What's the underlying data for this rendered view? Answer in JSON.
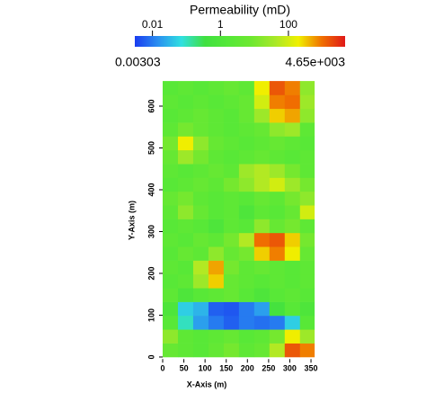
{
  "chart_data": {
    "type": "heatmap",
    "colorbar_title": "Permeability (mD)",
    "clim": [
      {
        "value": 0.00303,
        "label": "0.00303"
      },
      {
        "value": 4650,
        "label": "4.65e+003"
      }
    ],
    "cticks": [
      0.01,
      1,
      100
    ],
    "log_scale": true,
    "colorscale": [
      "#1a3cf0",
      "#2a90f0",
      "#30e0e0",
      "#40e040",
      "#55e838",
      "#6ee830",
      "#a8e828",
      "#f0f000",
      "#f07000",
      "#e01818"
    ],
    "xlabel": "X-Axis (m)",
    "ylabel": "Y-Axis (m)",
    "xlim": [
      0,
      358
    ],
    "ylim": [
      -5,
      660
    ],
    "xticks": [
      0,
      50,
      100,
      150,
      200,
      250,
      300,
      350
    ],
    "yticks": [
      0,
      100,
      200,
      300,
      400,
      500,
      600
    ],
    "x": [
      18,
      54,
      90,
      126,
      162,
      198,
      234,
      270,
      306,
      342
    ],
    "y": [
      16.5,
      49.5,
      82.5,
      115.5,
      148.5,
      181.5,
      214.5,
      247.5,
      280.5,
      313.5,
      346.5,
      379.5,
      412.5,
      445.5,
      478.5,
      511.5,
      544.5,
      577.5,
      610.5,
      643.5
    ],
    "values": [
      [
        5,
        3,
        2,
        4,
        10,
        3,
        5,
        50,
        1500,
        800
      ],
      [
        20,
        3,
        2,
        3,
        5,
        2,
        3,
        10,
        200,
        30
      ],
      [
        2,
        0.1,
        0.02,
        0.01,
        0.006,
        0.01,
        0.008,
        0.01,
        0.05,
        2
      ],
      [
        1,
        0.05,
        0.03,
        0.006,
        0.005,
        0.01,
        0.02,
        0.5,
        2,
        1
      ],
      [
        3,
        1,
        2,
        3,
        5,
        2,
        1,
        2,
        3,
        2
      ],
      [
        2,
        3,
        30,
        300,
        5,
        3,
        2,
        3,
        2,
        3
      ],
      [
        3,
        2,
        50,
        500,
        10,
        3,
        5,
        3,
        2,
        3
      ],
      [
        2,
        5,
        3,
        20,
        5,
        10,
        300,
        800,
        200,
        5
      ],
      [
        3,
        2,
        5,
        3,
        10,
        50,
        1000,
        1500,
        300,
        10
      ],
      [
        2,
        3,
        2,
        1,
        3,
        2,
        20,
        5,
        10,
        3
      ],
      [
        3,
        20,
        5,
        2,
        3,
        1,
        3,
        2,
        5,
        100
      ],
      [
        5,
        10,
        3,
        2,
        3,
        2,
        5,
        3,
        10,
        20
      ],
      [
        2,
        3,
        5,
        3,
        10,
        20,
        50,
        100,
        30,
        10
      ],
      [
        3,
        2,
        3,
        5,
        3,
        30,
        50,
        30,
        10,
        3
      ],
      [
        5,
        30,
        10,
        3,
        2,
        3,
        5,
        3,
        2,
        3
      ],
      [
        10,
        200,
        20,
        5,
        3,
        2,
        3,
        5,
        3,
        2
      ],
      [
        3,
        10,
        5,
        3,
        2,
        3,
        5,
        20,
        30,
        3
      ],
      [
        2,
        3,
        5,
        3,
        2,
        5,
        30,
        300,
        500,
        20
      ],
      [
        3,
        2,
        3,
        2,
        3,
        5,
        100,
        800,
        1000,
        30
      ],
      [
        2,
        3,
        2,
        3,
        5,
        3,
        200,
        1500,
        800,
        20
      ]
    ]
  }
}
